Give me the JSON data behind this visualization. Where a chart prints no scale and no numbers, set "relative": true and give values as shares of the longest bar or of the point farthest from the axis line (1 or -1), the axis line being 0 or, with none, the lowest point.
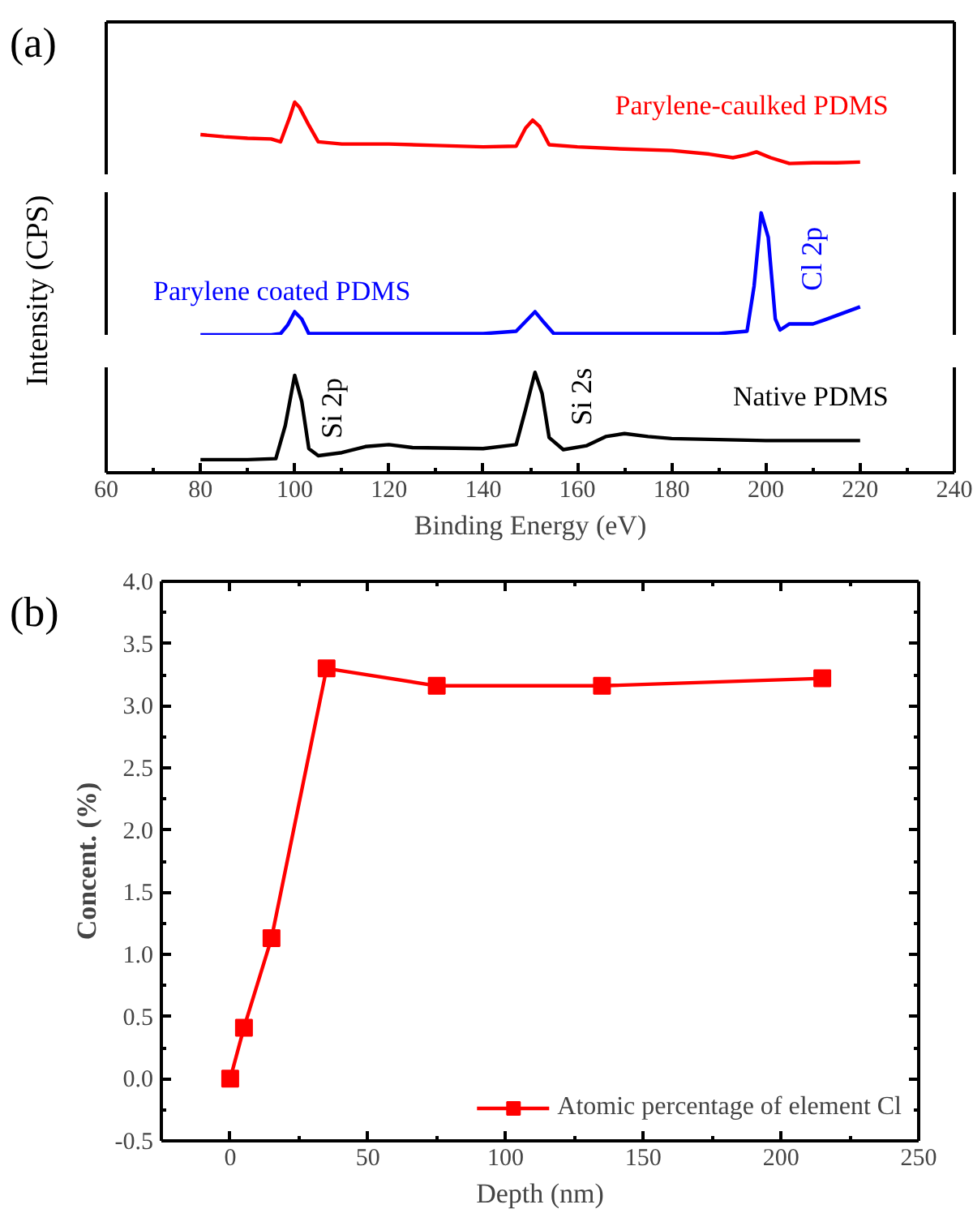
{
  "chart_data": [
    {
      "type": "line",
      "title": "(a)",
      "relative": true,
      "xlim": [
        60,
        240
      ],
      "tick_labels": false,
      "grid": false,
      "legend": false,
      "marker": "none",
      "line_style": "solid",
      "x": [
        80,
        85,
        90,
        95,
        97,
        99,
        100,
        101,
        103,
        105,
        110,
        120,
        130,
        140,
        147,
        149,
        150.5,
        152,
        154,
        160,
        170,
        180,
        188,
        193,
        196,
        198,
        201,
        205,
        210,
        215,
        220
      ],
      "series": [
        {
          "name": "Parylene-caulked PDMS",
          "color": "#ff0000",
          "values": [
            0.55,
            0.52,
            0.5,
            0.49,
            0.45,
            0.8,
            1,
            0.93,
            0.68,
            0.45,
            0.42,
            0.42,
            0.4,
            0.38,
            0.39,
            0.64,
            0.75,
            0.66,
            0.41,
            0.38,
            0.35,
            0.33,
            0.28,
            0.23,
            0.27,
            0.31,
            0.23,
            0.15,
            0.16,
            0.16,
            0.17
          ]
        }
      ]
    },
    {
      "type": "line",
      "ylabel": "Intensity (CPS)",
      "relative": true,
      "xlim": [
        60,
        240
      ],
      "tick_labels": false,
      "grid": false,
      "legend": false,
      "marker": "none",
      "line_style": "solid",
      "x": [
        80,
        95,
        97,
        98.5,
        100,
        101.5,
        103,
        110,
        140,
        147,
        149,
        151,
        152.5,
        155,
        170,
        190,
        196,
        197.5,
        199,
        200.5,
        202,
        203,
        205,
        210,
        213,
        220
      ],
      "series": [
        {
          "name": "Parylene coated PDMS",
          "color": "#0000ff",
          "values": [
            0,
            0,
            0.01,
            0.08,
            0.19,
            0.13,
            0.01,
            0.01,
            0.01,
            0.03,
            0.11,
            0.19,
            0.12,
            0.01,
            0.01,
            0.01,
            0.03,
            0.4,
            1,
            0.8,
            0.13,
            0.04,
            0.09,
            0.09,
            0.13,
            0.23
          ]
        }
      ],
      "annotations": [
        "Cl 2p"
      ]
    },
    {
      "type": "line",
      "xlabel": "Binding Energy (eV)",
      "relative": true,
      "xlim": [
        60,
        240
      ],
      "xticks": [
        60,
        80,
        100,
        120,
        140,
        160,
        180,
        200,
        220,
        240
      ],
      "tick_labels": "x",
      "grid": false,
      "legend": false,
      "marker": "none",
      "line_style": "solid",
      "x": [
        80,
        90,
        96,
        98,
        100,
        101.5,
        103,
        105,
        110,
        115,
        120,
        125,
        140,
        147,
        149,
        151,
        152.5,
        154,
        157,
        162,
        166,
        170,
        175,
        180,
        200,
        220
      ],
      "series": [
        {
          "name": "Native PDMS",
          "color": "#000000",
          "values": [
            0.13,
            0.13,
            0.14,
            0.47,
            0.97,
            0.71,
            0.24,
            0.17,
            0.2,
            0.26,
            0.28,
            0.25,
            0.24,
            0.28,
            0.63,
            1,
            0.79,
            0.35,
            0.23,
            0.27,
            0.36,
            0.39,
            0.36,
            0.34,
            0.32,
            0.32
          ]
        }
      ],
      "annotations": [
        "Si 2p",
        "Si 2s"
      ]
    },
    {
      "type": "line",
      "title": "(b)",
      "xlabel": "Depth (nm)",
      "ylabel": "Concent. (%)",
      "xlim": [
        -25,
        250
      ],
      "xticks": [
        0,
        50,
        100,
        150,
        200,
        250
      ],
      "ylim": [
        -0.5,
        4.0
      ],
      "yticks": [
        {
          "value": -0.5,
          "label": "-0.5"
        },
        {
          "value": 0,
          "label": "0.0"
        },
        {
          "value": 0.5,
          "label": "0.5"
        },
        {
          "value": 1,
          "label": "1.0"
        },
        {
          "value": 1.5,
          "label": "1.5"
        },
        {
          "value": 2,
          "label": "2.0"
        },
        {
          "value": 2.5,
          "label": "2.5"
        },
        {
          "value": 3,
          "label": "3.0"
        },
        {
          "value": 3.5,
          "label": "3.5"
        },
        {
          "value": 4,
          "label": "4.0"
        }
      ],
      "grid": false,
      "legend": "bottom right",
      "marker": "square",
      "line_style": "solid",
      "x": [
        0,
        5,
        15,
        35,
        75,
        135,
        215
      ],
      "series": [
        {
          "name": "Atomic percentage of element Cl",
          "color": "#ff0000",
          "values": [
            0,
            0.41,
            1.13,
            3.3,
            3.16,
            3.16,
            3.22
          ]
        }
      ]
    }
  ]
}
